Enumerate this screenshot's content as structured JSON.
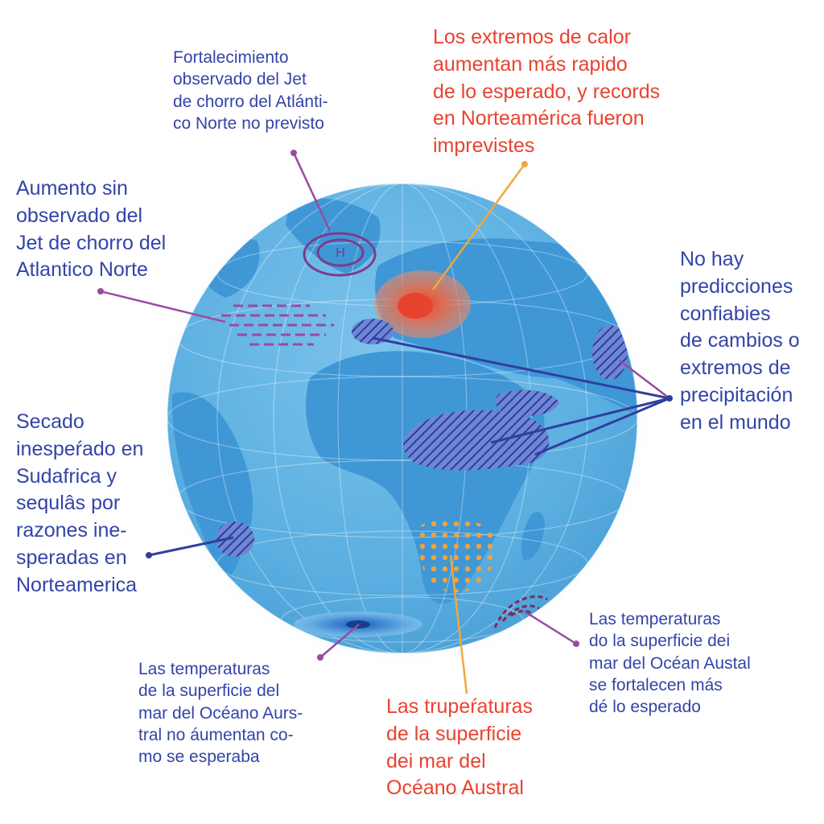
{
  "labels": {
    "jet_unforeseen": "Fortalecimiento\nobservado del Jet\nde chorro del Atlánti-\nco Norte no previsto",
    "heat_extremes": "Los extremos de calor\naumentan más rapido\nde lo esperado, y records\nen Norteamérica fueron\nimprevistes",
    "jet_increase": "Aumento sin\nobservado del\nJet de chorro del\nAtlantico Norte",
    "no_predictions": "No hay\npredicciones\nconfiabies\nde cambios o\nextremos de\nprecipitación\nen el mundo",
    "drying": "Secado\ninespeŕado en\nSudafrica y\nsequlâs por\nrazones ine-\nsperadas en\nNorteamerica",
    "sst_no_increase": "Las temperaturas\nde la superficie del\nmar del Océano Aurs-\ntral no áumentan co-\nmo se esperaba",
    "sst_red": "Las trupeŕaturas\nde la superficie\ndei mar del\nOcéano Austral",
    "sst_strengthen": "Las temperaturas\ndo la superficie dei\nmar del Océan Austal\nse fortalecen más\ndé lo esperado"
  },
  "map_markers": {
    "high_pressure": "H"
  },
  "colors": {
    "label_blue": "#3344a8",
    "label_red": "#e8432f",
    "ocean": "#5aaee0",
    "land": "#3f97d6",
    "heat": "#e8613f",
    "hatch": "#2d3f95",
    "dots": "#f2a23c",
    "jet": "#9a4aa0",
    "leader_blue": "#2f3fa0",
    "leader_orange": "#f0a83a",
    "leader_purple": "#9a4aa0"
  },
  "icons": {
    "high_pressure": "concentric-ellipses",
    "jet_stream": "dashed-lines",
    "drought": "diagonal-hatch",
    "sst_pattern": "dot-pattern"
  }
}
